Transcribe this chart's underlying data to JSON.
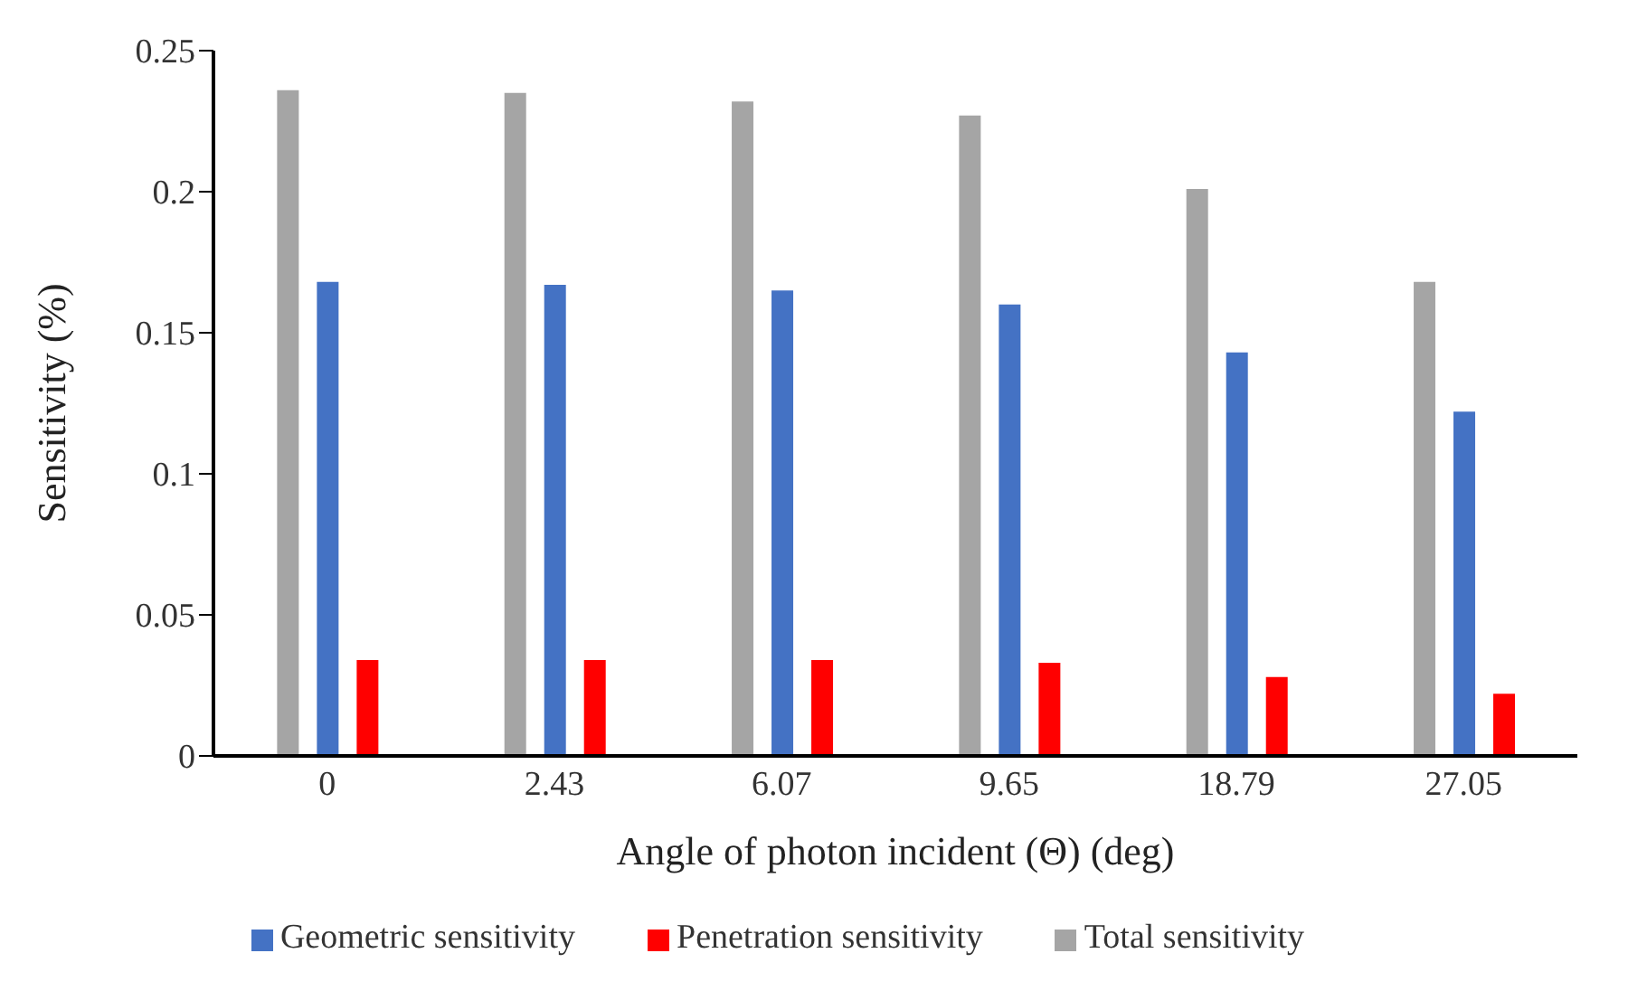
{
  "chart_data": {
    "type": "bar",
    "xlabel": "Angle of photon incident (Θ) (deg)",
    "ylabel": "Sensitivity (%)",
    "categories": [
      "0",
      "2.43",
      "6.07",
      "9.65",
      "18.79",
      "27.05"
    ],
    "series": [
      {
        "name": "Total sensitivity",
        "color": "#a5a5a5",
        "values": [
          0.236,
          0.235,
          0.232,
          0.227,
          0.201,
          0.168
        ]
      },
      {
        "name": "Geometric sensitivity",
        "color": "#4472c4",
        "values": [
          0.168,
          0.167,
          0.165,
          0.16,
          0.143,
          0.122
        ]
      },
      {
        "name": "Penetration sensitivity",
        "color": "#ff0000",
        "values": [
          0.034,
          0.034,
          0.034,
          0.033,
          0.028,
          0.022
        ]
      }
    ],
    "ylim": [
      0,
      0.25
    ],
    "yticks": [
      0,
      0.05,
      0.1,
      0.15,
      0.2,
      0.25
    ],
    "grid": false,
    "legend": "bottom"
  }
}
